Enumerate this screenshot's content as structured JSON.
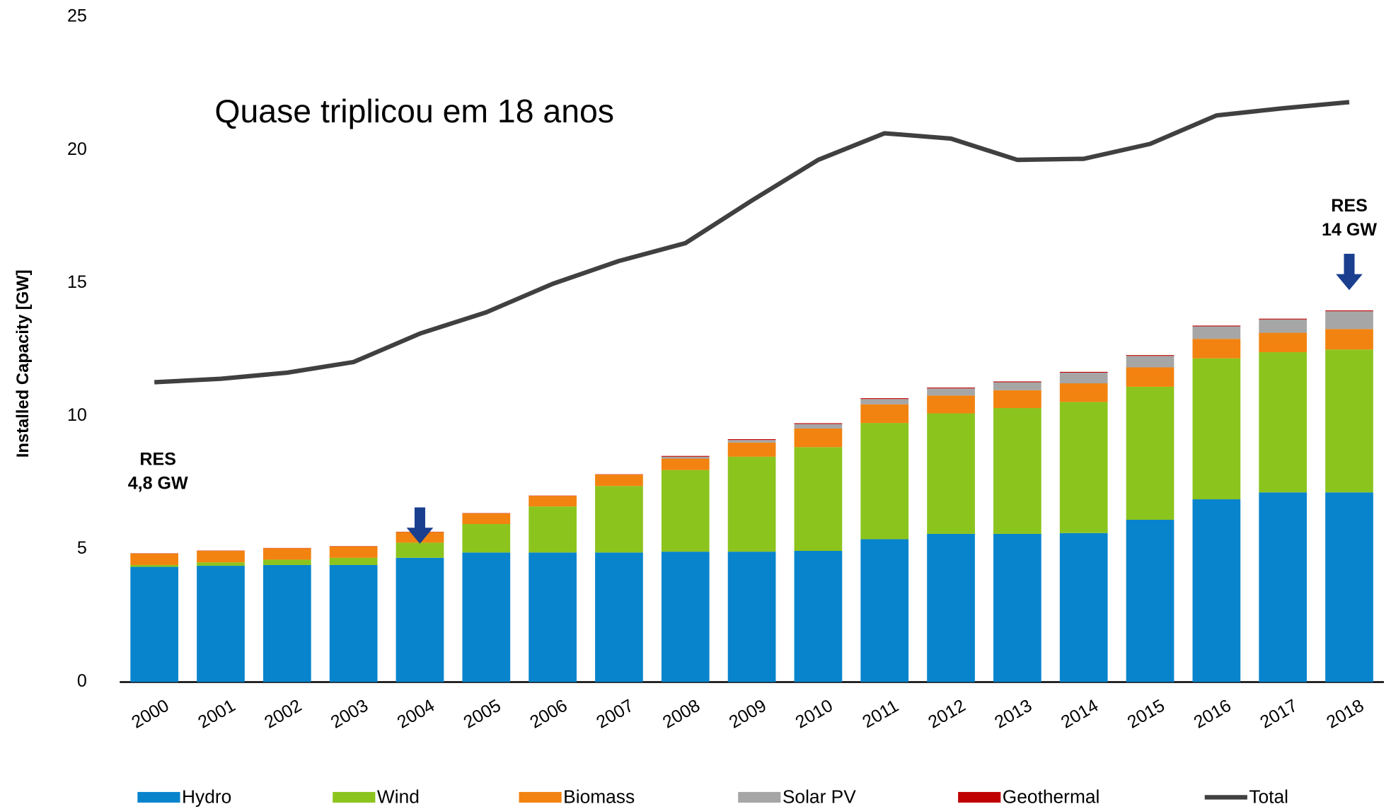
{
  "chart_data": {
    "type": "stacked-bar-line",
    "y_label": "Installed Capacity  [GW]",
    "categories": [
      "2000",
      "2001",
      "2002",
      "2003",
      "2004",
      "2005",
      "2006",
      "2007",
      "2008",
      "2009",
      "2010",
      "2011",
      "2012",
      "2013",
      "2014",
      "2015",
      "2016",
      "2017",
      "2018"
    ],
    "series": [
      {
        "name": "Hydro",
        "color": "#0884cc",
        "values": [
          4.33,
          4.37,
          4.4,
          4.4,
          4.67,
          4.87,
          4.87,
          4.87,
          4.9,
          4.9,
          4.93,
          5.37,
          5.57,
          5.57,
          5.6,
          6.1,
          6.87,
          7.13,
          7.13
        ]
      },
      {
        "name": "Wind",
        "color": "#8cc41e",
        "values": [
          0.07,
          0.13,
          0.2,
          0.27,
          0.57,
          1.07,
          1.73,
          2.5,
          3.07,
          3.57,
          3.9,
          4.37,
          4.53,
          4.73,
          4.93,
          5.0,
          5.3,
          5.27,
          5.37
        ]
      },
      {
        "name": "Biomass",
        "color": "#f28310",
        "values": [
          0.43,
          0.43,
          0.43,
          0.43,
          0.4,
          0.4,
          0.4,
          0.43,
          0.43,
          0.53,
          0.7,
          0.7,
          0.67,
          0.67,
          0.7,
          0.73,
          0.73,
          0.73,
          0.77
        ]
      },
      {
        "name": "Solar PV",
        "color": "#a6a6a6",
        "values": [
          0,
          0,
          0,
          0,
          0,
          0,
          0,
          0,
          0.07,
          0.1,
          0.17,
          0.2,
          0.27,
          0.3,
          0.4,
          0.43,
          0.47,
          0.5,
          0.67
        ]
      },
      {
        "name": "Geothermal",
        "color": "#c00000",
        "values": [
          0.01,
          0.01,
          0.01,
          0.01,
          0.01,
          0.01,
          0.01,
          0.01,
          0.03,
          0.03,
          0.03,
          0.03,
          0.03,
          0.03,
          0.03,
          0.03,
          0.03,
          0.03,
          0.03
        ]
      },
      {
        "name": "Total",
        "color": "#404040",
        "type": "line",
        "values": [
          11.27,
          11.4,
          11.63,
          12.03,
          13.1,
          13.9,
          14.97,
          15.83,
          16.5,
          18.1,
          19.63,
          20.63,
          20.43,
          19.63,
          19.67,
          20.23,
          21.3,
          21.57,
          21.8
        ]
      }
    ],
    "annotations": [
      {
        "lines": [
          "Quase triplicou em 18 anos"
        ]
      },
      {
        "lines": [
          "RES",
          "4,8 GW"
        ]
      },
      {
        "lines": [
          "RES",
          "14 GW"
        ]
      }
    ],
    "ylim": [
      0,
      25
    ],
    "yticks": [
      0,
      5,
      10,
      15,
      20,
      25
    ],
    "grid": false
  }
}
